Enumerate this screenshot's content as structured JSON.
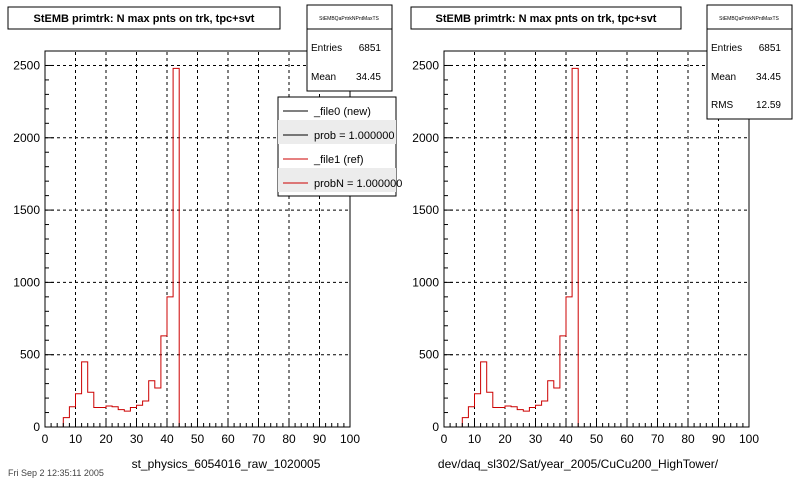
{
  "pads": [
    {
      "title": "StEMB primtrk: N max pnts on trk, tpc+svt",
      "xlabel": "st_physics_6054016_raw_1020005",
      "stats": {
        "name": "StEMBQaPrtrkNPntMaxTS",
        "entries_label": "Entries",
        "entries_value": "6851",
        "mean_label": "Mean",
        "mean_value": "34.45"
      },
      "legend": [
        {
          "label": "_file0 (new)",
          "color": "#000000"
        },
        {
          "label": "prob = 1.000000",
          "color": "#000000"
        },
        {
          "label": "_file1 (ref)",
          "color": "#cc0000"
        },
        {
          "label": "probN = 1.000000",
          "color": "#cc0000"
        }
      ]
    },
    {
      "title": "StEMB primtrk: N max pnts on trk, tpc+svt",
      "xlabel": "dev/daq_sl302/Sat/year_2005/CuCu200_HighTower/",
      "stats": {
        "name": "StEMBQaPrtrkNPntMaxTS",
        "entries_label": "Entries",
        "entries_value": "6851",
        "mean_label": "Mean",
        "mean_value": "34.45",
        "rms_label": "RMS",
        "rms_value": "12.59"
      }
    }
  ],
  "footer": "Fri Sep 2 12:35:11 2005",
  "chart_data": [
    {
      "type": "histogram",
      "title": "StEMB primtrk: N max pnts on trk, tpc+svt",
      "xlabel": "st_physics_6054016_raw_1020005",
      "xlim": [
        0,
        100
      ],
      "ylim": [
        0,
        2600
      ],
      "xticks": [
        "0",
        "10",
        "20",
        "30",
        "40",
        "50",
        "60",
        "70",
        "80",
        "90",
        "100"
      ],
      "yticks": [
        "0",
        "500",
        "1000",
        "1500",
        "2000",
        "2500"
      ],
      "grid": true,
      "bin_width": 2,
      "bin_edges_start": 0,
      "values": [
        0,
        0,
        0,
        65,
        140,
        230,
        450,
        240,
        135,
        135,
        145,
        140,
        120,
        110,
        135,
        150,
        180,
        320,
        270,
        630,
        900,
        2480,
        0,
        0,
        0,
        0,
        0,
        0,
        0,
        0,
        0,
        0,
        0,
        0,
        0,
        0,
        0,
        0,
        0,
        0,
        0,
        0,
        0,
        0,
        0,
        0,
        0,
        0,
        0,
        0
      ],
      "series": [
        {
          "name": "_file0 (new)",
          "color": "#000000"
        },
        {
          "name": "_file1 (ref)",
          "color": "#cc0000"
        }
      ],
      "legend_position": "top-right"
    },
    {
      "type": "histogram",
      "title": "StEMB primtrk: N max pnts on trk, tpc+svt",
      "xlabel": "dev/daq_sl302/Sat/year_2005/CuCu200_HighTower/",
      "xlim": [
        0,
        100
      ],
      "ylim": [
        0,
        2600
      ],
      "xticks": [
        "0",
        "10",
        "20",
        "30",
        "40",
        "50",
        "60",
        "70",
        "80",
        "90",
        "100"
      ],
      "yticks": [
        "0",
        "500",
        "1000",
        "1500",
        "2000",
        "2500"
      ],
      "grid": true,
      "bin_width": 2,
      "bin_edges_start": 0,
      "values": [
        0,
        0,
        0,
        65,
        140,
        230,
        450,
        240,
        135,
        135,
        145,
        140,
        120,
        110,
        135,
        150,
        180,
        320,
        270,
        630,
        900,
        2480,
        0,
        0,
        0,
        0,
        0,
        0,
        0,
        0,
        0,
        0,
        0,
        0,
        0,
        0,
        0,
        0,
        0,
        0,
        0,
        0,
        0,
        0,
        0,
        0,
        0,
        0,
        0,
        0
      ],
      "series": [
        {
          "name": "",
          "color": "#cc0000"
        }
      ]
    }
  ]
}
